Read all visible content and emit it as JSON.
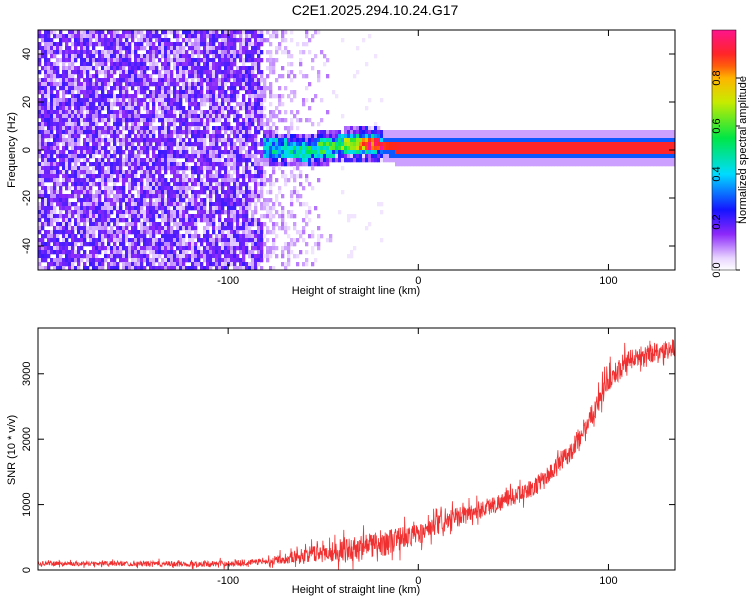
{
  "figure": {
    "title": "C2E1.2025.294.10.24.G17"
  },
  "chart_data": [
    {
      "type": "heatmap",
      "xlabel": "Height of straight line (km)",
      "ylabel": "Frequency (Hz)",
      "xlim": [
        -200,
        135
      ],
      "ylim": [
        -50,
        50
      ],
      "xticks": [
        -100,
        0,
        100
      ],
      "yticks": [
        -40,
        -20,
        0,
        20,
        40
      ],
      "colorbar": {
        "label": "Normalized spectral amplitude",
        "range": [
          0,
          1
        ],
        "ticks": [
          0.0,
          0.2,
          0.4,
          0.6,
          0.8
        ]
      },
      "regions": [
        {
          "x_range": [
            -200,
            -80
          ],
          "description_type": "broadband noise",
          "amplitude": [
            0.1,
            0.25
          ]
        },
        {
          "x_range": [
            -80,
            -45
          ],
          "description_type": "fading noise",
          "amplitude": [
            0.02,
            0.15
          ]
        },
        {
          "x_range": [
            -82,
            135
          ],
          "freq_center_hz": [
            1,
            4,
            1.5,
            0
          ],
          "amplitude_peak": 0.95
        }
      ],
      "signal_trace": [
        {
          "x": -80,
          "f": 1.5,
          "a": 0.3
        },
        {
          "x": -60,
          "f": 0.5,
          "a": 0.4
        },
        {
          "x": -40,
          "f": 3,
          "a": 0.5
        },
        {
          "x": -25,
          "f": 3.5,
          "a": 0.85
        },
        {
          "x": -10,
          "f": 1.5,
          "a": 0.9
        },
        {
          "x": 0,
          "f": 1.5,
          "a": 0.9
        },
        {
          "x": 20,
          "f": 1.5,
          "a": 0.9
        },
        {
          "x": 50,
          "f": 1.5,
          "a": 0.9
        },
        {
          "x": 90,
          "f": 1.5,
          "a": 0.9
        },
        {
          "x": 135,
          "f": 1.5,
          "a": 0.9
        }
      ]
    },
    {
      "type": "line",
      "xlabel": "Height of straight line (km)",
      "ylabel": "SNR (10 * v/v)",
      "xlim": [
        -200,
        135
      ],
      "ylim": [
        0,
        3700
      ],
      "xticks": [
        -100,
        0,
        100
      ],
      "yticks": [
        0,
        1000,
        2000,
        3000
      ],
      "color": "#f03030",
      "x": [
        -200,
        -160,
        -120,
        -100,
        -80,
        -60,
        -40,
        -20,
        0,
        20,
        40,
        60,
        70,
        80,
        90,
        100,
        110,
        120,
        135
      ],
      "y": [
        100,
        100,
        90,
        100,
        130,
        230,
        300,
        400,
        550,
        800,
        1000,
        1250,
        1500,
        1800,
        2300,
        2900,
        3200,
        3300,
        3400
      ],
      "noise": [
        {
          "x": -200,
          "amp": 40
        },
        {
          "x": -80,
          "amp": 60
        },
        {
          "x": -40,
          "amp": 220
        },
        {
          "x": -20,
          "amp": 260
        },
        {
          "x": 0,
          "amp": 200
        },
        {
          "x": 60,
          "amp": 160
        },
        {
          "x": 100,
          "amp": 220
        },
        {
          "x": 135,
          "amp": 180
        }
      ]
    }
  ]
}
